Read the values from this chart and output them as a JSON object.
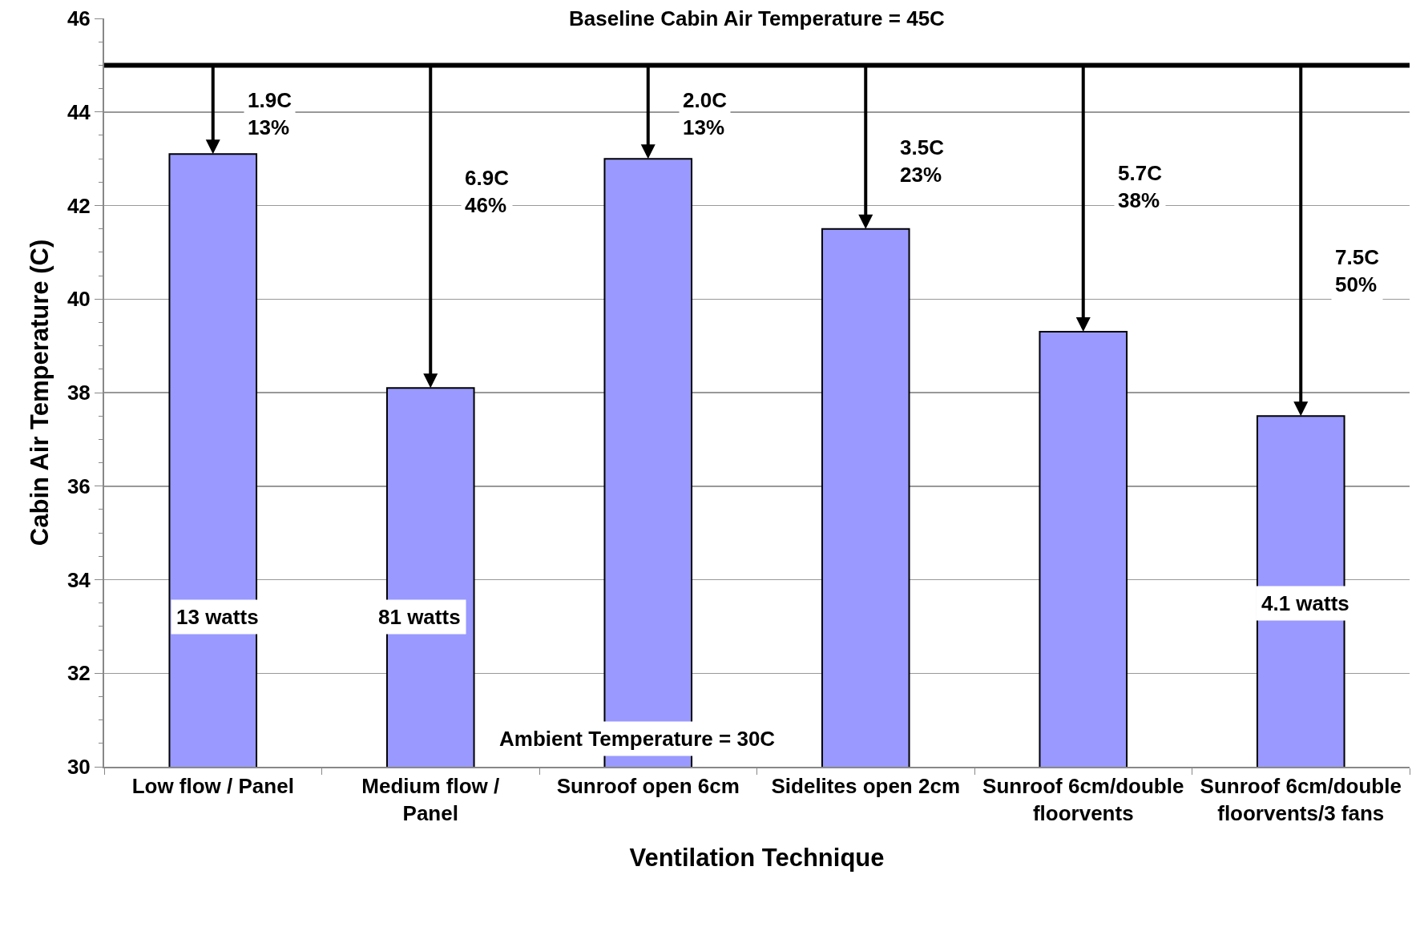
{
  "chart_data": {
    "type": "bar",
    "xlabel": "Ventilation Technique",
    "ylabel": "Cabin Air Temperature (C)",
    "categories": [
      "Low flow / Panel",
      "Medium flow / Panel",
      "Sunroof open 6cm",
      "Sidelites open 2cm",
      "Sunroof 6cm/double floorvents",
      "Sunroof 6cm/double floorvents/3 fans"
    ],
    "values": [
      43.1,
      38.1,
      43.0,
      41.5,
      39.3,
      37.5
    ],
    "color": "#9999ff",
    "ylim": [
      30,
      46
    ],
    "yticks": [
      30,
      32,
      34,
      36,
      38,
      40,
      42,
      44,
      46
    ],
    "grid": "y",
    "ref_lines": [
      {
        "axis": "y",
        "value": 45,
        "label": "Baseline Cabin Air Temperature = 45C",
        "color": "#000000"
      }
    ],
    "annotations": [
      "1.9C\n13%",
      "6.9C\n46%",
      "2.0C\n13%",
      "3.5C\n23%",
      "5.7C\n38%",
      "7.5C\n50%",
      "13 watts",
      "81 watts",
      "4.1 watts",
      "Ambient Temperature = 30C"
    ]
  }
}
